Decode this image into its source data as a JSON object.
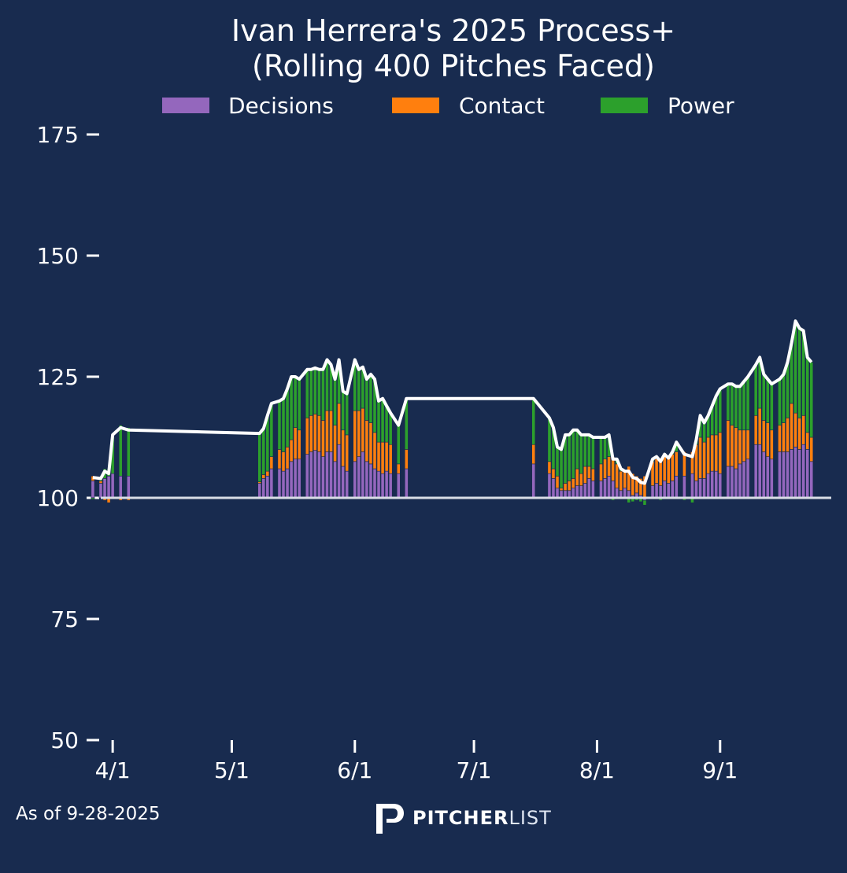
{
  "colors": {
    "background": "#182b4f",
    "decisions": "#9467bd",
    "contact": "#ff7f0e",
    "power": "#2ca02c",
    "line": "#ffffff",
    "baseline": "#d9dde6"
  },
  "footer": {
    "as_of": "As of 9-28-2025",
    "brand_strong": "PITCHER",
    "brand_light": "LIST"
  },
  "chart_data": {
    "type": "bar",
    "stacked": true,
    "title_line1": "Ivan Herrera's 2025 Process+",
    "title_line2": "(Rolling 400 Pitches Faced)",
    "baseline": 100,
    "ylim": [
      50,
      175
    ],
    "yticks": [
      50,
      75,
      100,
      125,
      150,
      175
    ],
    "xlim": [
      88,
      272
    ],
    "xticks": [
      {
        "day": 91,
        "label": "4/1"
      },
      {
        "day": 121,
        "label": "5/1"
      },
      {
        "day": 152,
        "label": "6/1"
      },
      {
        "day": 182,
        "label": "7/1"
      },
      {
        "day": 213,
        "label": "8/1"
      },
      {
        "day": 244,
        "label": "9/1"
      }
    ],
    "x_unit": "day of year 2025",
    "legend": [
      "Decisions",
      "Contact",
      "Power"
    ],
    "line_label": "Process+",
    "series_fields": [
      "day",
      "decisions",
      "contact",
      "power"
    ],
    "games": [
      [
        86,
        3.5,
        1.0,
        -0.3
      ],
      [
        88,
        3.0,
        0.5,
        0.5
      ],
      [
        89,
        4.0,
        -0.5,
        2.0
      ],
      [
        90,
        4.5,
        -1.0,
        1.5
      ],
      [
        91,
        5.0,
        0.0,
        8.0
      ],
      [
        93,
        4.5,
        -0.5,
        10.5
      ],
      [
        95,
        4.5,
        -0.5,
        10.0
      ],
      [
        128,
        3.0,
        0.3,
        10.0
      ],
      [
        129,
        4.0,
        0.8,
        9.5
      ],
      [
        130,
        4.5,
        1.0,
        11.5
      ],
      [
        131,
        6.0,
        2.5,
        11.0
      ],
      [
        133,
        6.0,
        4.0,
        10.0
      ],
      [
        134,
        5.5,
        4.0,
        11.0
      ],
      [
        135,
        6.0,
        4.5,
        12.0
      ],
      [
        136,
        7.5,
        4.5,
        13.0
      ],
      [
        137,
        8.0,
        6.5,
        10.5
      ],
      [
        138,
        8.0,
        6.0,
        10.5
      ],
      [
        140,
        9.0,
        7.5,
        10.0
      ],
      [
        141,
        9.5,
        7.5,
        9.5
      ],
      [
        142,
        9.8,
        7.5,
        9.5
      ],
      [
        143,
        9.5,
        7.5,
        9.5
      ],
      [
        144,
        8.5,
        7.5,
        10.5
      ],
      [
        145,
        9.5,
        8.5,
        10.5
      ],
      [
        146,
        9.5,
        8.5,
        9.5
      ],
      [
        147,
        7.5,
        7.5,
        9.5
      ],
      [
        148,
        11.0,
        8.5,
        9.0
      ],
      [
        149,
        6.5,
        7.5,
        8.0
      ],
      [
        150,
        5.5,
        7.5,
        8.5
      ],
      [
        152,
        7.5,
        10.5,
        10.5
      ],
      [
        153,
        8.5,
        9.5,
        8.5
      ],
      [
        154,
        9.5,
        9.0,
        8.5
      ],
      [
        155,
        7.5,
        8.5,
        8.5
      ],
      [
        156,
        7.0,
        8.5,
        10.0
      ],
      [
        157,
        6.0,
        7.5,
        11.0
      ],
      [
        158,
        5.5,
        6.0,
        8.5
      ],
      [
        159,
        5.0,
        6.5,
        9.0
      ],
      [
        160,
        5.5,
        6.0,
        7.5
      ],
      [
        161,
        5.0,
        6.0,
        6.5
      ],
      [
        163,
        5.0,
        2.0,
        8.0
      ],
      [
        165,
        6.0,
        4.0,
        10.5
      ],
      [
        197,
        7.0,
        4.0,
        9.5
      ],
      [
        201,
        5.0,
        2.5,
        9.0
      ],
      [
        202,
        4.0,
        2.0,
        8.5
      ],
      [
        203,
        2.0,
        2.5,
        6.0
      ],
      [
        204,
        1.5,
        0.5,
        8.0
      ],
      [
        205,
        1.5,
        1.5,
        10.0
      ],
      [
        206,
        1.5,
        2.0,
        9.5
      ],
      [
        207,
        2.0,
        2.0,
        10.0
      ],
      [
        208,
        2.5,
        3.5,
        8.0
      ],
      [
        209,
        2.5,
        2.5,
        8.0
      ],
      [
        210,
        3.0,
        3.5,
        6.5
      ],
      [
        211,
        4.0,
        2.5,
        6.5
      ],
      [
        212,
        3.5,
        2.5,
        6.5
      ],
      [
        214,
        3.5,
        3.5,
        5.5
      ],
      [
        215,
        4.0,
        4.0,
        4.5
      ],
      [
        216,
        4.5,
        4.0,
        4.5
      ],
      [
        217,
        3.5,
        5.0,
        -0.5
      ],
      [
        218,
        2.0,
        5.0,
        1.0
      ],
      [
        219,
        1.5,
        4.0,
        0.5
      ],
      [
        220,
        2.0,
        3.5,
        0.0
      ],
      [
        221,
        1.5,
        5.0,
        -1.0
      ],
      [
        222,
        0.5,
        4.5,
        -0.8
      ],
      [
        223,
        1.0,
        3.5,
        -0.5
      ],
      [
        224,
        0.5,
        3.5,
        -0.8
      ],
      [
        225,
        -0.5,
        4.5,
        -1.0
      ],
      [
        227,
        2.5,
        5.0,
        0.5
      ],
      [
        228,
        3.0,
        5.0,
        0.5
      ],
      [
        229,
        2.5,
        5.5,
        -0.5
      ],
      [
        230,
        3.5,
        5.0,
        0.5
      ],
      [
        231,
        3.0,
        5.5,
        -0.3
      ],
      [
        232,
        3.5,
        5.5,
        0.5
      ],
      [
        233,
        4.5,
        5.0,
        2.0
      ],
      [
        235,
        4.5,
        5.0,
        -0.5
      ],
      [
        237,
        5.0,
        4.5,
        -1.0
      ],
      [
        238,
        3.5,
        7.5,
        1.0
      ],
      [
        239,
        4.0,
        8.5,
        4.5
      ],
      [
        240,
        4.0,
        7.5,
        4.0
      ],
      [
        241,
        5.0,
        7.5,
        4.5
      ],
      [
        242,
        5.5,
        7.5,
        6.0
      ],
      [
        243,
        5.5,
        7.5,
        8.0
      ],
      [
        244,
        5.0,
        8.5,
        9.0
      ],
      [
        246,
        6.5,
        9.5,
        7.5
      ],
      [
        247,
        6.5,
        8.5,
        8.5
      ],
      [
        248,
        6.0,
        8.5,
        8.5
      ],
      [
        249,
        7.0,
        7.0,
        9.0
      ],
      [
        250,
        7.5,
        6.5,
        10.0
      ],
      [
        251,
        8.0,
        6.0,
        11.0
      ],
      [
        253,
        11.0,
        6.0,
        10.5
      ],
      [
        254,
        11.0,
        7.5,
        10.5
      ],
      [
        255,
        9.5,
        6.5,
        9.5
      ],
      [
        256,
        8.5,
        7.0,
        9.0
      ],
      [
        257,
        8.0,
        6.0,
        9.5
      ],
      [
        259,
        9.5,
        5.5,
        9.5
      ],
      [
        260,
        9.5,
        6.0,
        10.0
      ],
      [
        261,
        9.5,
        7.0,
        11.5
      ],
      [
        262,
        10.0,
        9.5,
        12.5
      ],
      [
        263,
        10.5,
        7.0,
        19.0
      ],
      [
        264,
        10.0,
        6.5,
        18.5
      ],
      [
        265,
        11.0,
        6.0,
        17.5
      ],
      [
        266,
        10.0,
        3.5,
        15.5
      ],
      [
        267,
        7.5,
        5.0,
        15.5
      ]
    ]
  }
}
